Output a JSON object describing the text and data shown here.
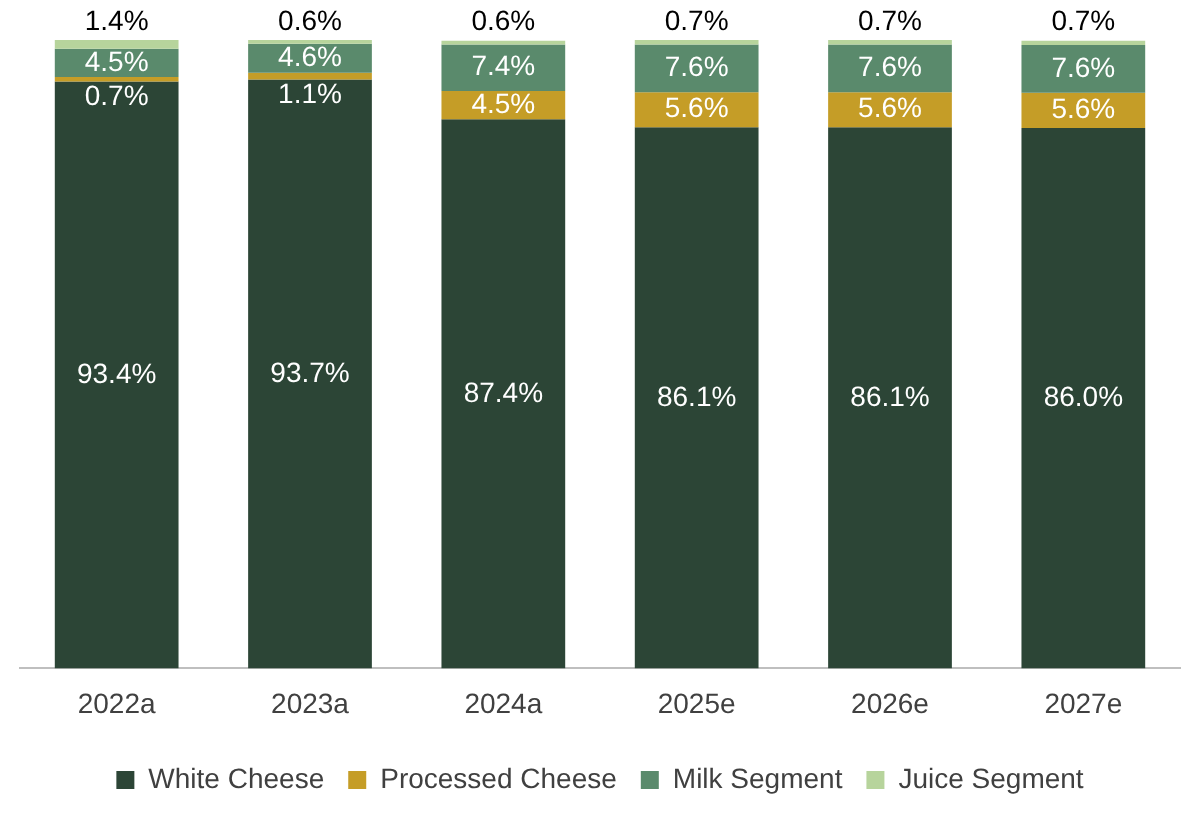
{
  "chart_data": {
    "type": "bar",
    "stacked": true,
    "grid": false,
    "legend": "bottom",
    "categories": [
      "2022a",
      "2023a",
      "2024a",
      "2025e",
      "2026e",
      "2027e"
    ],
    "series": [
      {
        "name": "White Cheese",
        "color": "#2c4536",
        "values": [
          93.4,
          93.7,
          87.4,
          86.1,
          86.1,
          86.0
        ],
        "value_labels": [
          "93.4%",
          "93.7%",
          "87.4%",
          "86.1%",
          "86.1%",
          "86.0%"
        ]
      },
      {
        "name": "Processed Cheese",
        "color": "#c59d27",
        "values": [
          0.7,
          1.1,
          4.5,
          5.6,
          5.6,
          5.6
        ],
        "value_labels": [
          "0.7%",
          "1.1%",
          "4.5%",
          "5.6%",
          "5.6%",
          "5.6%"
        ]
      },
      {
        "name": "Milk Segment",
        "color": "#5a8a6c",
        "values": [
          4.5,
          4.6,
          7.4,
          7.6,
          7.6,
          7.6
        ],
        "value_labels": [
          "4.5%",
          "4.6%",
          "7.4%",
          "7.6%",
          "7.6%",
          "7.6%"
        ]
      },
      {
        "name": "Juice Segment",
        "color": "#b7d49c",
        "values": [
          1.4,
          0.6,
          0.6,
          0.7,
          0.7,
          0.7
        ],
        "value_labels": [
          "1.4%",
          "0.6%",
          "0.6%",
          "0.7%",
          "0.7%",
          "0.7%"
        ]
      }
    ]
  }
}
